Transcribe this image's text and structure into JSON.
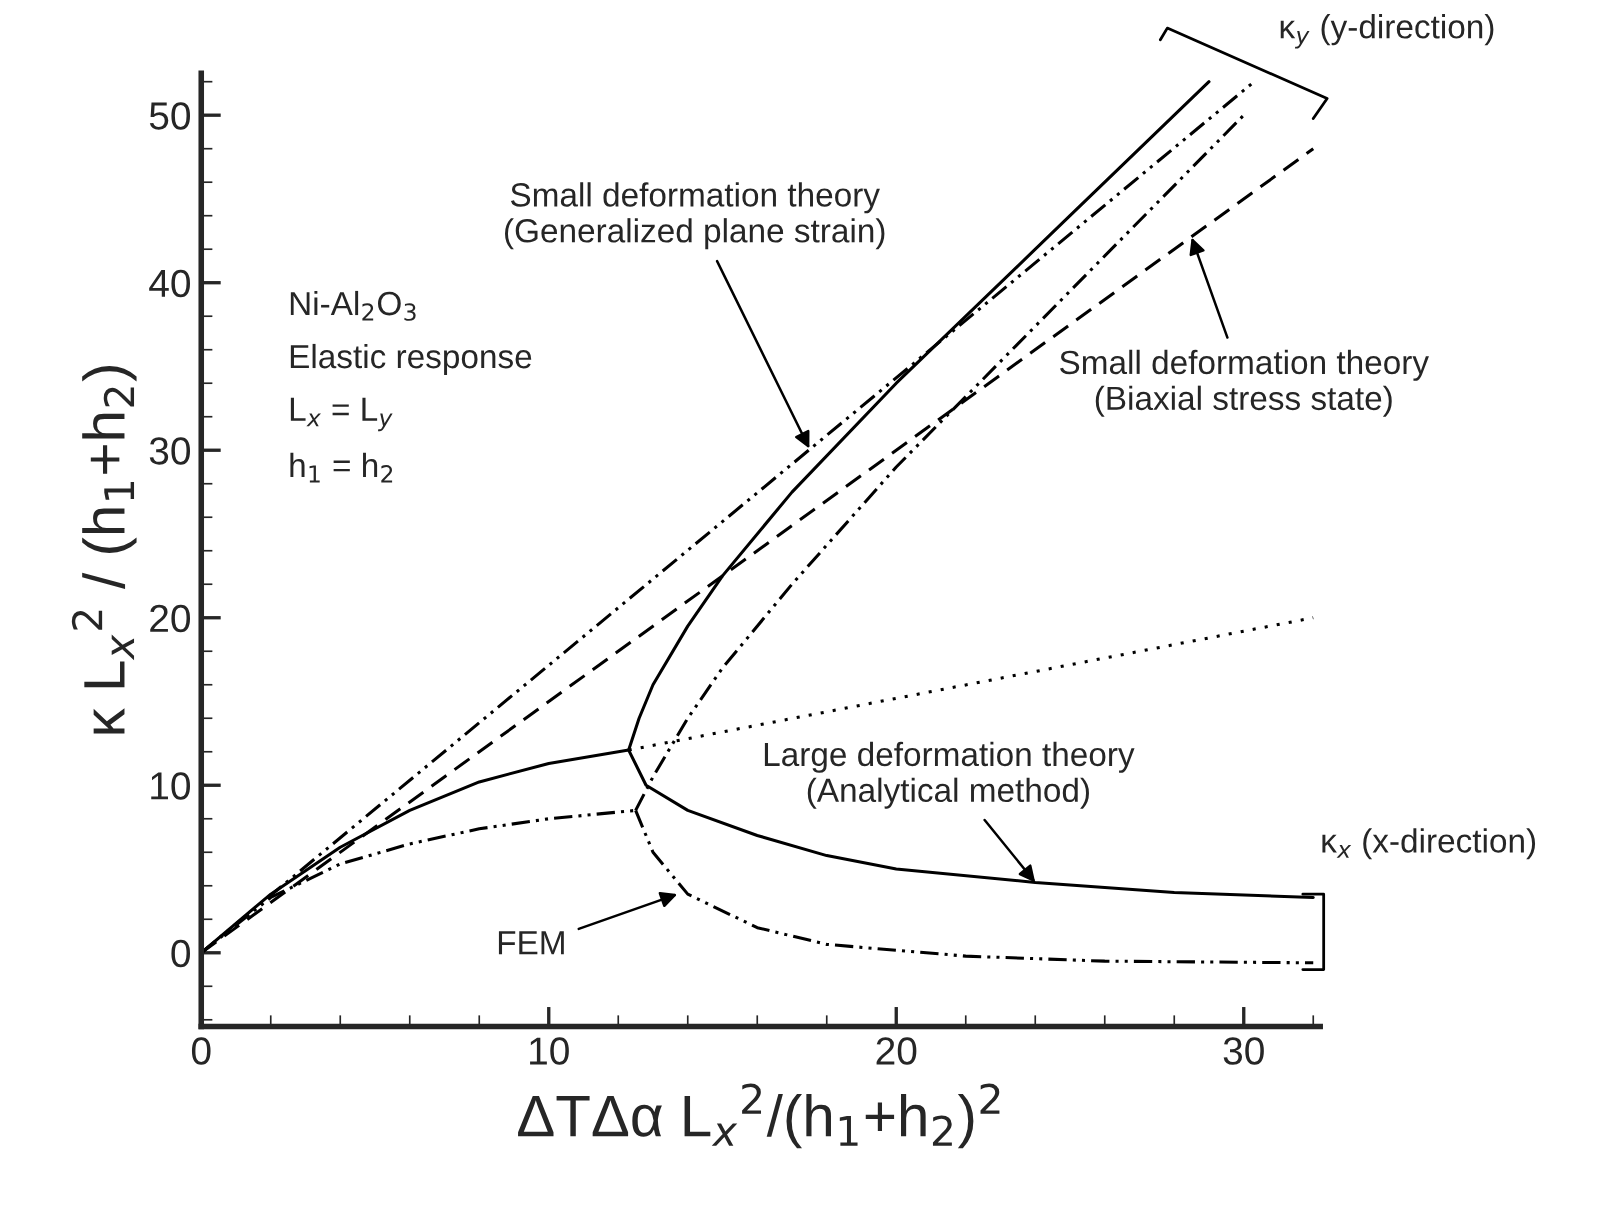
{
  "chart_data": {
    "type": "line",
    "xlabel": "ΔTΔα L$_{x}$$^{2}$/(h$_{1}$+h$_{2}$)$^{2}$",
    "ylabel": "κ L$_{x}$$^{2}$ / (h$_{1}$+h$_{2}$)",
    "xlim": [
      0,
      32.2
    ],
    "ylim": [
      -4.4,
      52.5
    ],
    "xticks": [
      0,
      10,
      20,
      30
    ],
    "yticks": [
      0,
      10,
      20,
      30,
      40,
      50
    ],
    "grid": false,
    "marker": "none",
    "series": [
      {
        "color": "#000000",
        "line_style": "dashdotdot",
        "x": [
          0,
          30.3
        ],
        "values": [
          0,
          52
        ]
      },
      {
        "color": "#000000",
        "line_style": "dashed",
        "x": [
          0,
          32
        ],
        "values": [
          0,
          48
        ]
      },
      {
        "color": "#000000",
        "line_style": "dotted",
        "x": [
          12.3,
          32
        ],
        "values": [
          12.1,
          20
        ]
      },
      {
        "color": "#000000",
        "line_style": "solid",
        "x": [
          0,
          2,
          4,
          6,
          8,
          10,
          12.3
        ],
        "values": [
          0,
          3.5,
          6.3,
          8.5,
          10.2,
          11.3,
          12.1
        ]
      },
      {
        "color": "#000000",
        "line_style": "solid",
        "x": [
          12.3,
          12.6,
          13,
          14,
          15,
          17,
          20,
          25,
          29
        ],
        "values": [
          12.1,
          14,
          16,
          19.5,
          22.5,
          27.5,
          34,
          44,
          52
        ]
      },
      {
        "color": "#000000",
        "line_style": "solid",
        "x": [
          12.3,
          12.8,
          14,
          16,
          18,
          20,
          24,
          28,
          32
        ],
        "values": [
          12.1,
          10,
          8.5,
          7,
          5.8,
          5,
          4.2,
          3.6,
          3.3
        ]
      },
      {
        "color": "#000000",
        "line_style": "dashdotdot",
        "x": [
          0,
          2,
          4,
          6,
          8,
          10,
          12.5
        ],
        "values": [
          0,
          3.3,
          5.3,
          6.5,
          7.4,
          8.0,
          8.5
        ]
      },
      {
        "color": "#000000",
        "line_style": "dashdotdot",
        "x": [
          12.5,
          13,
          14,
          15,
          17,
          20,
          25,
          30
        ],
        "values": [
          8.5,
          10.5,
          14,
          17,
          22,
          29,
          39.5,
          50
        ]
      },
      {
        "color": "#000000",
        "line_style": "dashdotdot",
        "x": [
          12.5,
          13,
          14,
          16,
          18,
          22,
          26,
          32
        ],
        "values": [
          8.5,
          6,
          3.5,
          1.5,
          0.5,
          -0.2,
          -0.5,
          -0.6
        ]
      }
    ],
    "annotations": [
      {
        "text": "Small deformation theory\n(Generalized plane strain)",
        "x": 17.5,
        "y": 30.1
      },
      {
        "text": "Small deformation theory\n(Biaxial stress state)",
        "x": 28.5,
        "y": 42.7
      },
      {
        "text": "Large deformation theory\n(Analytical method)",
        "x": 24,
        "y": 4.2
      },
      {
        "text": "FEM",
        "x": 13.7,
        "y": 3.5
      },
      "κ$_{y}$ (y-direction)",
      "κ$_{x}$ (x-direction)",
      "Ni-Al$_{2}$O$_{3}$\nElastic response\nL$_{x}$ = L$_{y}$\nh$_{1}$ = h$_{2}$"
    ]
  }
}
